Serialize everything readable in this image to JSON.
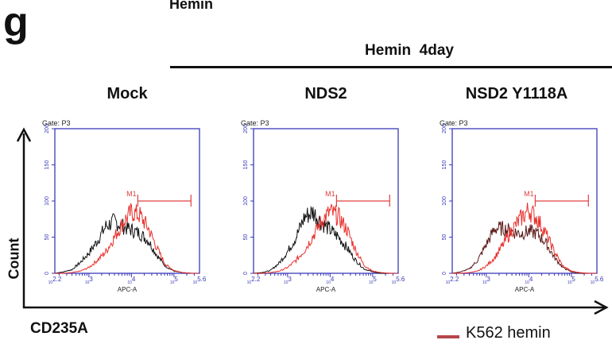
{
  "figure": {
    "panel_letter": "g",
    "top_cropped_label": "Hemin",
    "group_label": "Hemin  4day",
    "y_axis_label": "Count",
    "x_axis_label": "CD235A",
    "legend": [
      {
        "label": "K562 hemin",
        "color": "#b5474a"
      }
    ]
  },
  "chart_data": [
    {
      "type": "line",
      "title": "Mock",
      "gate": "Gate: P3",
      "xlabel": "APC-A",
      "x_scale": "log10",
      "xlim": [
        2.2,
        5.6
      ],
      "ylim": [
        0,
        200
      ],
      "yticks": [
        "0",
        "50",
        "100",
        "150",
        "200"
      ],
      "xticks": [
        {
          "base": "10",
          "exp": "2.2",
          "v": 2.2
        },
        {
          "base": "10",
          "exp": "3",
          "v": 3
        },
        {
          "base": "10",
          "exp": "4",
          "v": 4
        },
        {
          "base": "10",
          "exp": "5",
          "v": 5
        },
        {
          "base": "10",
          "exp": "5.6",
          "v": 5.6
        }
      ],
      "marker": {
        "label": "M1",
        "from": 4.15,
        "to": 5.4,
        "y": 100,
        "color": "#e04040"
      },
      "x": [
        2.2,
        2.4,
        2.6,
        2.8,
        3.0,
        3.2,
        3.4,
        3.6,
        3.8,
        4.0,
        4.2,
        4.4,
        4.6,
        4.8,
        5.0,
        5.2,
        5.4,
        5.6
      ],
      "series": [
        {
          "color": "#111111",
          "values": [
            0,
            2,
            5,
            15,
            28,
            45,
            65,
            72,
            65,
            60,
            55,
            45,
            25,
            10,
            3,
            1,
            0,
            0
          ]
        },
        {
          "color": "#e8302c",
          "values": [
            0,
            0,
            1,
            3,
            8,
            18,
            30,
            50,
            70,
            85,
            80,
            62,
            35,
            12,
            4,
            1,
            0,
            0
          ]
        }
      ]
    },
    {
      "type": "line",
      "title": "NDS2",
      "gate": "Gate: P3",
      "xlabel": "APC-A",
      "x_scale": "log10",
      "xlim": [
        2.2,
        5.6
      ],
      "ylim": [
        0,
        200
      ],
      "yticks": [
        "0",
        "50",
        "100",
        "150",
        "200"
      ],
      "xticks": [
        {
          "base": "10",
          "exp": "2.2",
          "v": 2.2
        },
        {
          "base": "10",
          "exp": "3",
          "v": 3
        },
        {
          "base": "10",
          "exp": "4",
          "v": 4
        },
        {
          "base": "10",
          "exp": "5",
          "v": 5
        },
        {
          "base": "10",
          "exp": "5.6",
          "v": 5.6
        }
      ],
      "marker": {
        "label": "M1",
        "from": 4.15,
        "to": 5.4,
        "y": 100,
        "color": "#e04040"
      },
      "x": [
        2.2,
        2.4,
        2.6,
        2.8,
        3.0,
        3.2,
        3.4,
        3.6,
        3.8,
        4.0,
        4.2,
        4.4,
        4.6,
        4.8,
        5.0,
        5.2,
        5.4,
        5.6
      ],
      "series": [
        {
          "color": "#111111",
          "values": [
            0,
            1,
            4,
            14,
            30,
            50,
            78,
            85,
            70,
            60,
            50,
            35,
            18,
            6,
            2,
            0,
            0,
            0
          ]
        },
        {
          "color": "#e8302c",
          "values": [
            0,
            0,
            1,
            3,
            8,
            18,
            32,
            52,
            72,
            85,
            78,
            60,
            32,
            11,
            3,
            1,
            0,
            0
          ]
        }
      ]
    },
    {
      "type": "line",
      "title": "NSD2 Y1118A",
      "gate": "Gate: P3",
      "xlabel": "APC-A",
      "x_scale": "log10",
      "xlim": [
        2.2,
        5.6
      ],
      "ylim": [
        0,
        200
      ],
      "yticks": [
        "0",
        "50",
        "100",
        "150",
        "200"
      ],
      "xticks": [
        {
          "base": "10",
          "exp": "2.2",
          "v": 2.2
        },
        {
          "base": "10",
          "exp": "3",
          "v": 3
        },
        {
          "base": "10",
          "exp": "4",
          "v": 4
        },
        {
          "base": "10",
          "exp": "5",
          "v": 5
        },
        {
          "base": "10",
          "exp": "5.6",
          "v": 5.6
        }
      ],
      "marker": {
        "label": "M1",
        "from": 4.15,
        "to": 5.4,
        "y": 100,
        "color": "#e04040"
      },
      "x": [
        2.2,
        2.4,
        2.6,
        2.8,
        3.0,
        3.2,
        3.4,
        3.6,
        3.8,
        4.0,
        4.2,
        4.4,
        4.6,
        4.8,
        5.0,
        5.2,
        5.4,
        5.6
      ],
      "series": [
        {
          "color": "#5a1a1a",
          "values": [
            0,
            2,
            6,
            18,
            40,
            62,
            62,
            58,
            55,
            58,
            55,
            42,
            22,
            8,
            2,
            0,
            0,
            0
          ]
        },
        {
          "color": "#e8302c",
          "values": [
            0,
            0,
            1,
            3,
            10,
            22,
            40,
            60,
            75,
            88,
            75,
            55,
            30,
            10,
            3,
            1,
            0,
            0
          ]
        }
      ]
    }
  ]
}
